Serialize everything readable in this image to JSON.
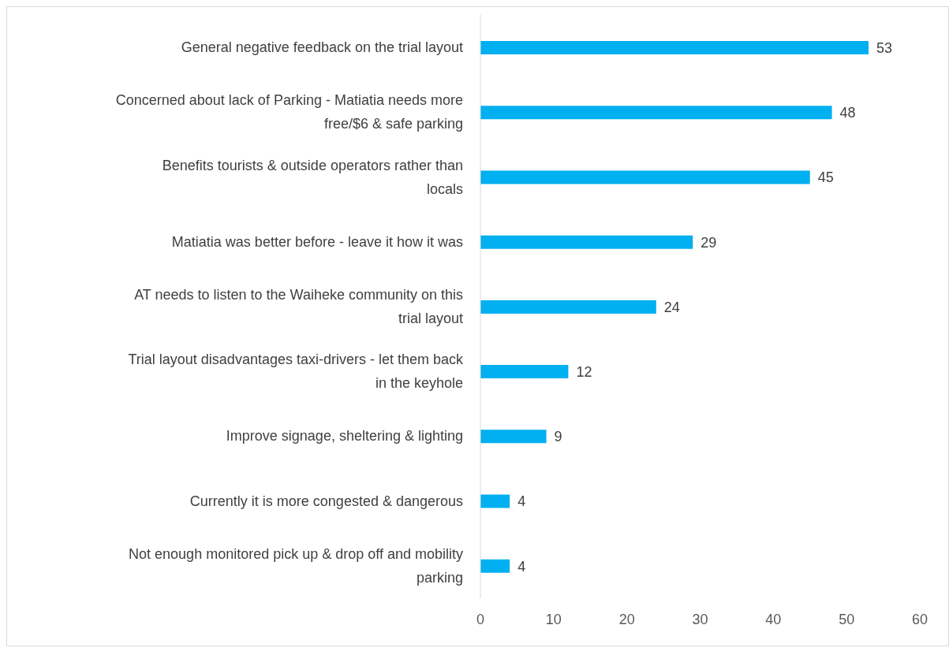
{
  "chart_data": {
    "type": "bar",
    "orientation": "horizontal",
    "categories": [
      "General negative feedback on the trial layout",
      "Concerned about lack of Parking - Matiatia needs more free/$6 & safe parking",
      "Benefits tourists & outside operators rather than locals",
      "Matiatia was better before - leave it how it was",
      "AT needs to listen to the Waiheke community on this trial layout",
      "Trial layout disadvantages taxi-drivers - let them back in the keyhole",
      "Improve signage, sheltering & lighting",
      "Currently it is more congested & dangerous",
      "Not enough monitored pick up & drop off and mobility parking"
    ],
    "values": [
      53,
      48,
      45,
      29,
      24,
      12,
      9,
      4,
      4
    ],
    "color": "#00b0f0",
    "xlim": [
      0,
      60
    ],
    "xticks": [
      0,
      10,
      20,
      30,
      40,
      50,
      60
    ],
    "data_labels": true,
    "grid": false,
    "legend": false
  }
}
